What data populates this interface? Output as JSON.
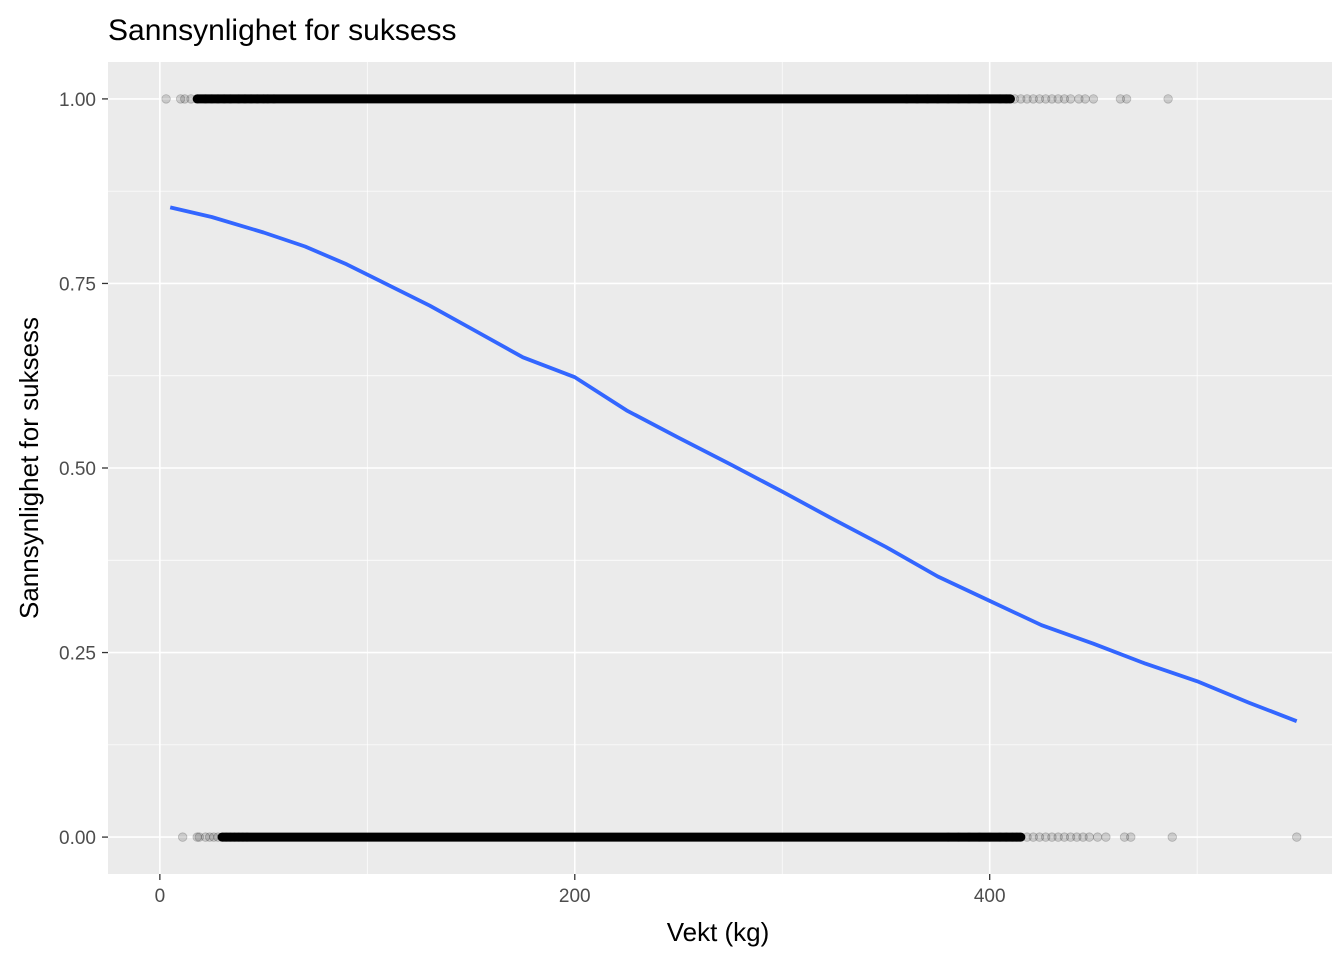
{
  "chart_data": {
    "type": "scatter",
    "title": "Sannsynlighet for suksess",
    "xlabel": "Vekt (kg)",
    "ylabel": "Sannsynlighet for suksess",
    "xlim": [
      -25,
      565
    ],
    "ylim": [
      -0.05,
      1.05
    ],
    "x_ticks": [
      0,
      200,
      400
    ],
    "x_tick_labels": [
      "0",
      "200",
      "400"
    ],
    "x_minor_ticks": [
      100,
      300,
      500
    ],
    "y_ticks": [
      0,
      0.25,
      0.5,
      0.75,
      1
    ],
    "y_tick_labels": [
      "0.00",
      "0.25",
      "0.50",
      "0.75",
      "1.00"
    ],
    "y_minor_ticks": [
      0.125,
      0.375,
      0.625,
      0.875
    ],
    "grid": true,
    "legend": "none",
    "colors": {
      "panel_background": "#ebebeb",
      "grid": "#ffffff",
      "points": "#000000",
      "fit_line": "#3366ff",
      "tick_text": "#4d4d4d",
      "tick_marks": "#333333"
    },
    "point_opacity": 0.15,
    "series": [
      {
        "type": "points",
        "y": 1,
        "dense_range": [
          18,
          410
        ],
        "x": [
          3,
          10,
          12,
          15,
          18,
          22,
          25,
          28,
          31,
          34,
          38,
          41,
          44,
          47,
          50,
          52,
          55,
          360,
          365,
          370,
          375,
          380,
          385,
          390,
          395,
          400,
          405,
          408,
          410,
          412,
          415,
          418,
          421,
          424,
          427,
          430,
          433,
          436,
          439,
          443,
          446,
          450,
          463,
          466,
          486
        ]
      },
      {
        "type": "points",
        "y": 0,
        "dense_range": [
          30,
          415
        ],
        "x": [
          11,
          18,
          19,
          22,
          24,
          26,
          28,
          30,
          32,
          34,
          36,
          38,
          40,
          42,
          380,
          385,
          390,
          395,
          400,
          405,
          408,
          411,
          413,
          415,
          418,
          421,
          424,
          427,
          430,
          433,
          436,
          439,
          442,
          445,
          448,
          452,
          456,
          465,
          468,
          488,
          548
        ]
      },
      {
        "type": "line",
        "name": "",
        "x": [
          5,
          25,
          50,
          70,
          90,
          110,
          130,
          150,
          175,
          200,
          225,
          250,
          275,
          300,
          325,
          350,
          375,
          400,
          425,
          450,
          475,
          500,
          525,
          548
        ],
        "values": [
          0.853,
          0.84,
          0.819,
          0.8,
          0.776,
          0.748,
          0.72,
          0.689,
          0.65,
          0.623,
          0.578,
          0.541,
          0.505,
          0.468,
          0.43,
          0.393,
          0.353,
          0.32,
          0.287,
          0.262,
          0.235,
          0.211,
          0.182,
          0.157
        ]
      }
    ]
  }
}
